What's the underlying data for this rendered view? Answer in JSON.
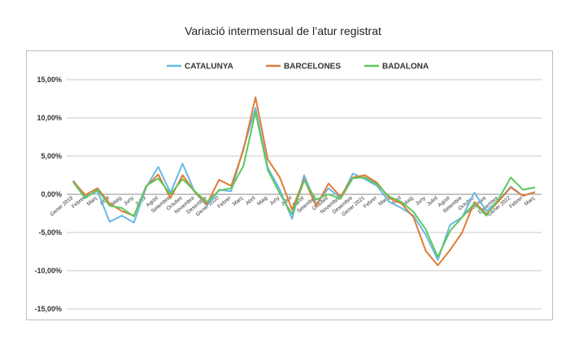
{
  "chart_data": {
    "type": "line",
    "title": "Variació intermensual de l’atur registrat",
    "xlabel": "",
    "ylabel": "",
    "ylim": [
      -15,
      15
    ],
    "yticks": [
      15,
      10,
      5,
      0,
      -5,
      -10,
      -15
    ],
    "yticklabels": [
      "15,00%",
      "10,00%",
      "5,00%",
      "0,00%",
      "-5,00%",
      "-10,00%",
      "-15,00%"
    ],
    "grid": true,
    "legend_position": "top-center",
    "categories": [
      "Gener 2019",
      "Febrer",
      "Març",
      "Abril",
      "Maig",
      "Juny",
      "Juliol",
      "Agost",
      "Setembre",
      "Octubre",
      "Novembre",
      "Desembre",
      "Gener 2020",
      "Febrer",
      "Març",
      "Abril",
      "Maig",
      "Juny",
      "Juliol",
      "Agost",
      "Setembre",
      "Octubre",
      "Novembre",
      "Desembre",
      "Gener 2021",
      "Febrer",
      "Març",
      "Abril",
      "Maig",
      "Juny",
      "Juliol",
      "Agost",
      "Setembre",
      "Octubre",
      "Novembre",
      "Desembre",
      "Gener 2022",
      "Febrer",
      "Març"
    ],
    "series": [
      {
        "name": "CATALUNYA",
        "color": "#6ab8e6",
        "values": [
          1.8,
          -0.3,
          0.4,
          -3.6,
          -2.8,
          -3.7,
          0.9,
          3.6,
          0.2,
          4.0,
          0.3,
          -1.5,
          0.6,
          0.4,
          6.0,
          11.3,
          3.5,
          0.6,
          -3.2,
          2.5,
          -1.3,
          0.8,
          -0.5,
          2.7,
          2.0,
          1.1,
          -1.0,
          -1.8,
          -2.8,
          -5.3,
          -8.6,
          -4.0,
          -3.0,
          0.2,
          -2.2,
          -0.8,
          1.0,
          -0.2,
          0.3
        ]
      },
      {
        "name": "BARCELONES",
        "color": "#e07b39",
        "values": [
          1.7,
          -0.1,
          0.8,
          -1.2,
          -2.2,
          -2.8,
          1.0,
          2.6,
          -0.5,
          2.5,
          0.3,
          -1.3,
          1.9,
          1.1,
          5.8,
          12.7,
          4.6,
          2.2,
          -2.0,
          2.0,
          -1.6,
          1.4,
          -0.3,
          2.2,
          2.5,
          1.5,
          -0.5,
          -1.2,
          -3.0,
          -7.4,
          -9.3,
          -7.3,
          -5.0,
          -1.0,
          -2.6,
          -0.9,
          0.9,
          -0.2,
          0.3
        ]
      },
      {
        "name": "BADALONA",
        "color": "#5cc85c",
        "values": [
          1.6,
          -0.5,
          0.6,
          -1.5,
          -1.8,
          -2.9,
          1.1,
          2.1,
          0.0,
          2.0,
          0.4,
          -1.0,
          0.5,
          0.8,
          3.7,
          10.8,
          3.2,
          0.1,
          -2.6,
          1.8,
          -0.7,
          0.0,
          -0.6,
          2.1,
          2.2,
          1.3,
          -0.3,
          -1.0,
          -2.3,
          -4.6,
          -8.2,
          -4.8,
          -3.0,
          -1.2,
          -2.8,
          -0.6,
          2.2,
          0.6,
          0.9
        ]
      }
    ]
  }
}
